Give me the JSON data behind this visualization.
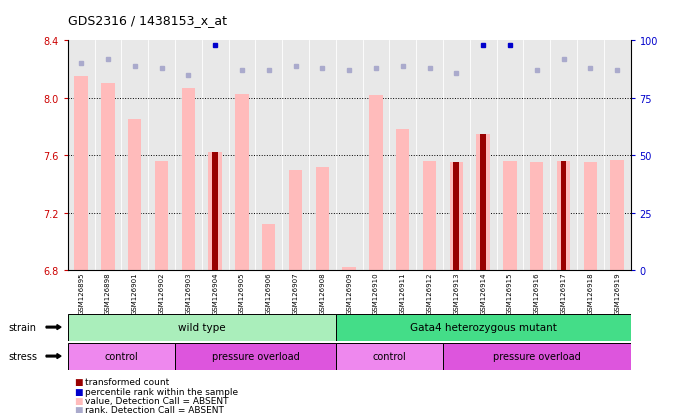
{
  "title": "GDS2316 / 1438153_x_at",
  "samples": [
    "GSM126895",
    "GSM126898",
    "GSM126901",
    "GSM126902",
    "GSM126903",
    "GSM126904",
    "GSM126905",
    "GSM126906",
    "GSM126907",
    "GSM126908",
    "GSM126909",
    "GSM126910",
    "GSM126911",
    "GSM126912",
    "GSM126913",
    "GSM126914",
    "GSM126915",
    "GSM126916",
    "GSM126917",
    "GSM126918",
    "GSM126919"
  ],
  "pink_values": [
    8.15,
    8.1,
    7.85,
    7.56,
    8.07,
    7.62,
    8.03,
    7.12,
    7.5,
    7.52,
    6.82,
    8.02,
    7.78,
    7.56,
    7.55,
    7.75,
    7.56,
    7.55,
    7.56,
    7.55,
    7.57
  ],
  "red_values": [
    null,
    null,
    null,
    null,
    null,
    7.62,
    null,
    null,
    null,
    null,
    null,
    null,
    null,
    null,
    7.55,
    7.75,
    null,
    null,
    7.56,
    null,
    null
  ],
  "blue_rank": [
    null,
    null,
    null,
    null,
    null,
    98,
    null,
    null,
    null,
    null,
    null,
    null,
    null,
    null,
    null,
    98,
    98,
    null,
    null,
    null,
    null
  ],
  "light_blue_rank": [
    90,
    92,
    89,
    88,
    85,
    null,
    87,
    87,
    89,
    88,
    87,
    88,
    89,
    88,
    86,
    null,
    null,
    87,
    92,
    88,
    87
  ],
  "ylim_left": [
    6.8,
    8.4
  ],
  "ylim_right": [
    0,
    100
  ],
  "yticks_left": [
    6.8,
    7.2,
    7.6,
    8.0,
    8.4
  ],
  "yticks_right": [
    0,
    25,
    50,
    75,
    100
  ],
  "dotted_lines": [
    8.0,
    7.6,
    7.2
  ],
  "strain_groups": [
    {
      "label": "wild type",
      "start": 0,
      "end": 10,
      "color": "#aaeebb"
    },
    {
      "label": "Gata4 heterozygous mutant",
      "start": 10,
      "end": 21,
      "color": "#44dd88"
    }
  ],
  "stress_groups": [
    {
      "label": "control",
      "start": 0,
      "end": 4,
      "color": "#ee88ee"
    },
    {
      "label": "pressure overload",
      "start": 4,
      "end": 10,
      "color": "#dd55dd"
    },
    {
      "label": "control",
      "start": 10,
      "end": 14,
      "color": "#ee88ee"
    },
    {
      "label": "pressure overload",
      "start": 14,
      "end": 21,
      "color": "#dd55dd"
    }
  ],
  "pink_color": "#ffbbbb",
  "red_color": "#990000",
  "blue_color": "#0000cc",
  "light_blue_color": "#aaaacc",
  "bg_color": "#e8e8e8",
  "ylabel_left_color": "#cc0000",
  "ylabel_right_color": "#0000cc"
}
